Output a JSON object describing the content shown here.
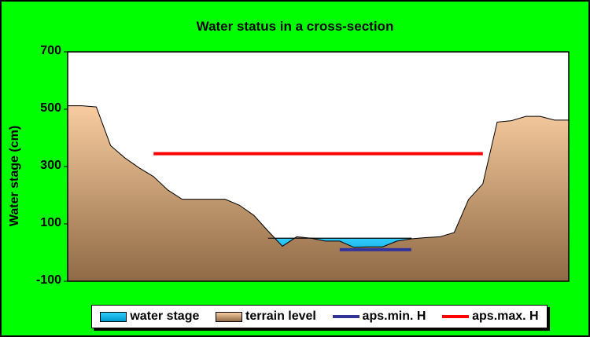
{
  "chart_data": {
    "type": "area",
    "title": "Water status in a cross-section",
    "ylabel": "Water stage (cm)",
    "xlabel": "",
    "ylim": [
      -100,
      700
    ],
    "yticks": [
      "700",
      "500",
      "300",
      "100",
      "-100"
    ],
    "ytick_values": [
      700,
      500,
      300,
      100,
      -100
    ],
    "x": [
      0,
      1,
      2,
      3,
      4,
      5,
      6,
      7,
      8,
      9,
      10,
      11,
      12,
      13,
      14,
      15,
      16,
      17,
      18,
      19,
      20,
      21,
      22,
      23,
      24,
      25,
      26,
      27,
      28,
      29,
      30,
      31,
      32,
      33,
      34,
      35
    ],
    "series": [
      {
        "name": "terrain level",
        "color": "#8f6a45",
        "values": [
          512,
          512,
          508,
          373,
          330,
          295,
          265,
          218,
          186,
          186,
          186,
          186,
          165,
          130,
          75,
          22,
          55,
          50,
          40,
          40,
          18,
          20,
          20,
          40,
          48,
          52,
          55,
          70,
          185,
          240,
          455,
          460,
          475,
          475,
          462,
          462
        ]
      },
      {
        "name": "water stage",
        "color": "#33ccff",
        "values": [
          null,
          null,
          null,
          null,
          null,
          null,
          null,
          null,
          null,
          null,
          null,
          null,
          null,
          null,
          50,
          50,
          50,
          50,
          50,
          50,
          50,
          50,
          50,
          50,
          50,
          null,
          null,
          null,
          null,
          null,
          null,
          null,
          null,
          null,
          null,
          null
        ]
      },
      {
        "name": "aps.min. H",
        "color": "#333399",
        "values": [
          null,
          null,
          null,
          null,
          null,
          null,
          null,
          null,
          null,
          null,
          null,
          null,
          null,
          null,
          null,
          null,
          null,
          null,
          null,
          10,
          10,
          10,
          10,
          10,
          10,
          null,
          null,
          null,
          null,
          null,
          null,
          null,
          null,
          null,
          null,
          null
        ]
      },
      {
        "name": "aps.max. H",
        "color": "#ff0000",
        "values": [
          null,
          null,
          null,
          null,
          null,
          null,
          345,
          345,
          345,
          345,
          345,
          345,
          345,
          345,
          345,
          345,
          345,
          345,
          345,
          345,
          345,
          345,
          345,
          345,
          345,
          345,
          345,
          345,
          345,
          345,
          null,
          null,
          null,
          null,
          null,
          null
        ]
      }
    ],
    "colors": {
      "background": "#00ff00",
      "plot_area": "#ffffff",
      "terrain_top": "#f8cca0",
      "terrain_bottom": "#8f6a45",
      "water_top": "#33ccff",
      "water_bottom": "#0099cc"
    },
    "grid": false,
    "legend_placement": "bottom"
  },
  "legend": {
    "water_stage": "water stage",
    "terrain_level": "terrain level",
    "aps_min": "aps.min. H",
    "aps_max": "aps.max. H"
  }
}
